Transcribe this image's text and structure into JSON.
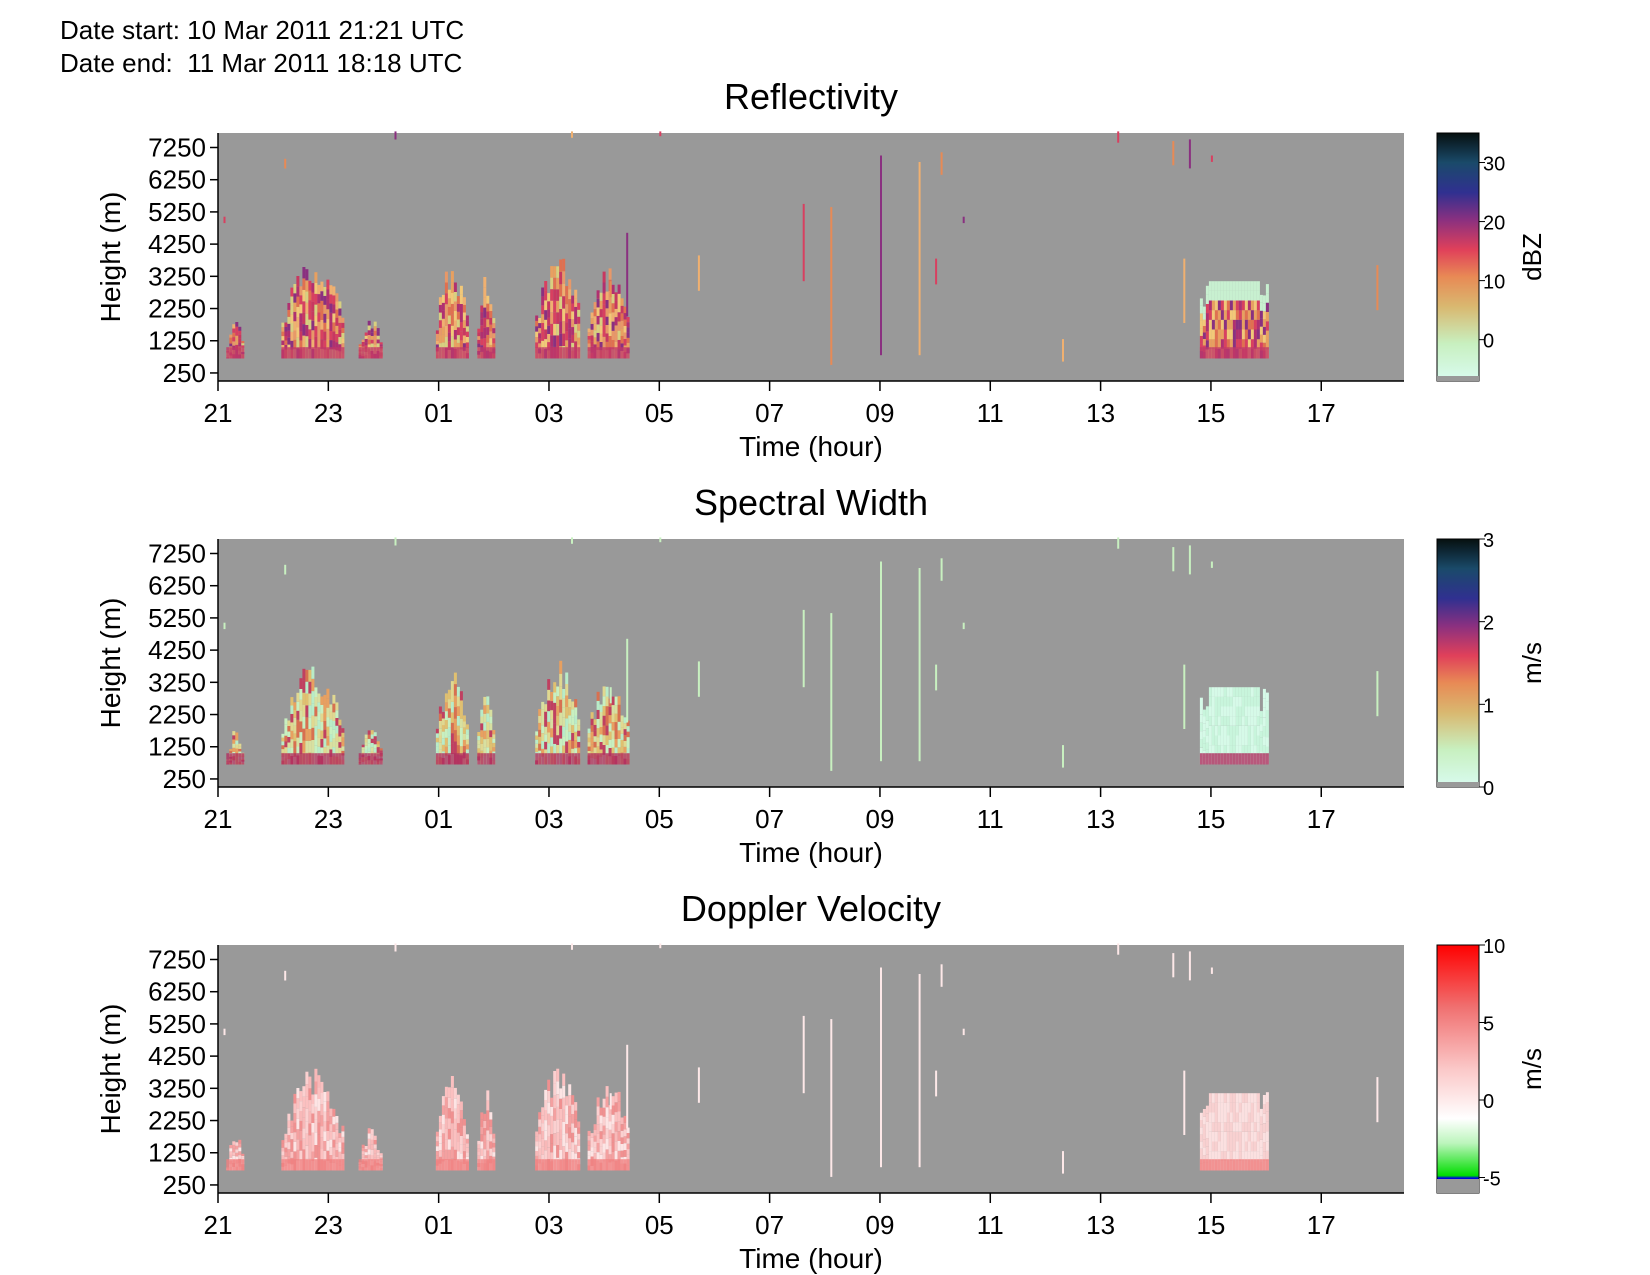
{
  "header": {
    "date_start_label": "Date start:",
    "date_start": "10 Mar 2011 21:21 UTC",
    "date_end_label": "Date end:",
    "date_end": "11 Mar 2011 18:18 UTC"
  },
  "colors": {
    "background_no_data": "#999999"
  },
  "chart_data": [
    {
      "type": "heatmap",
      "title": "Reflectivity",
      "xlabel": "Time (hour)",
      "ylabel": "Height (m)",
      "x_ticks": [
        "21",
        "23",
        "01",
        "03",
        "05",
        "07",
        "09",
        "11",
        "13",
        "15",
        "17"
      ],
      "y_ticks": [
        "7250",
        "6250",
        "5250",
        "4250",
        "3250",
        "2250",
        "1250",
        "250"
      ],
      "colorbar": {
        "label": "dBZ",
        "ticks": [
          "30",
          "20",
          "10",
          "0"
        ],
        "range": [
          -7,
          35
        ]
      },
      "cloud_regions_hours": [
        [
          21.2,
          21.5
        ],
        [
          22.4,
          23.2
        ],
        [
          23.6,
          24.0
        ],
        [
          25.0,
          25.5
        ],
        [
          25.7,
          25.9
        ],
        [
          26.8,
          27.6
        ],
        [
          27.7,
          28.4
        ]
      ]
    },
    {
      "type": "heatmap",
      "title": "Spectral Width",
      "xlabel": "Time (hour)",
      "ylabel": "Height (m)",
      "x_ticks": [
        "21",
        "23",
        "01",
        "03",
        "05",
        "07",
        "09",
        "11",
        "13",
        "15",
        "17"
      ],
      "y_ticks": [
        "7250",
        "6250",
        "5250",
        "4250",
        "3250",
        "2250",
        "1250",
        "250"
      ],
      "colorbar": {
        "label": "m/s",
        "ticks": [
          "3",
          "2",
          "1",
          "0"
        ],
        "range": [
          0,
          3
        ]
      }
    },
    {
      "type": "heatmap",
      "title": "Doppler Velocity",
      "xlabel": "Time (hour)",
      "ylabel": "Height (m)",
      "x_ticks": [
        "21",
        "23",
        "01",
        "03",
        "05",
        "07",
        "09",
        "11",
        "13",
        "15",
        "17"
      ],
      "y_ticks": [
        "7250",
        "6250",
        "5250",
        "4250",
        "3250",
        "2250",
        "1250",
        "250"
      ],
      "colorbar": {
        "label": "m/s",
        "ticks": [
          "10",
          "5",
          "0",
          "-5"
        ],
        "range": [
          -6,
          10
        ]
      }
    }
  ]
}
